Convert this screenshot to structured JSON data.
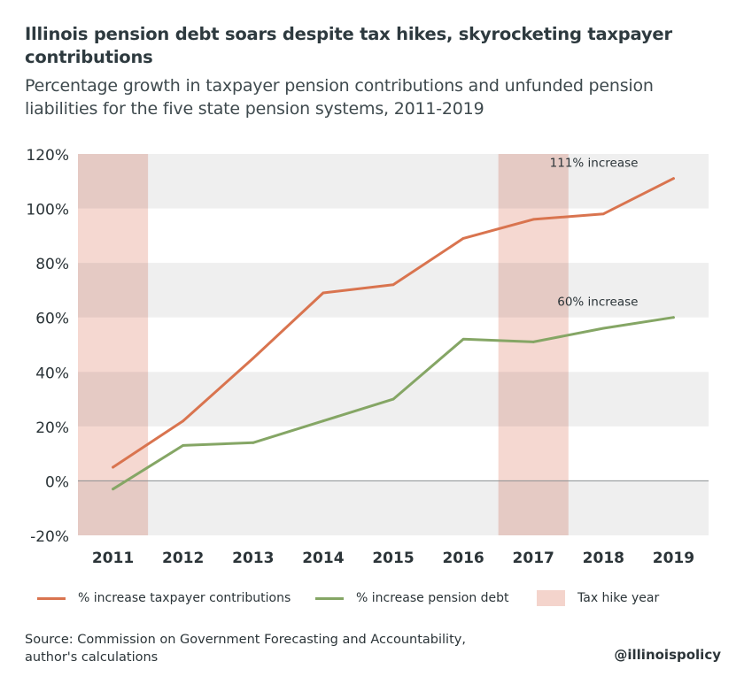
{
  "header": {
    "title": "Illinois pension debt soars despite tax hikes, skyrocketing taxpayer contributions",
    "subtitle": "Percentage growth in taxpayer pension contributions and unfunded pension liabilities for the five state pension systems, 2011-2019"
  },
  "chart_data": {
    "type": "line",
    "title": "Illinois pension debt soars despite tax hikes, skyrocketing taxpayer contributions",
    "subtitle": "Percentage growth in taxpayer pension contributions and unfunded pension liabilities for the five state pension systems, 2011-2019",
    "categories": [
      "2011",
      "2012",
      "2013",
      "2014",
      "2015",
      "2016",
      "2017",
      "2018",
      "2019"
    ],
    "y_ticks": [
      "-20%",
      "0%",
      "20%",
      "40%",
      "60%",
      "80%",
      "100%",
      "120%"
    ],
    "y_tick_values": [
      -20,
      0,
      20,
      40,
      60,
      80,
      100,
      120
    ],
    "ylim": [
      -20,
      120
    ],
    "grid": "alternating horizontal bands",
    "series": [
      {
        "name": "% increase taxpayer contributions",
        "color": "#d9744f",
        "values": [
          5,
          22,
          45,
          69,
          72,
          89,
          96,
          98,
          111
        ]
      },
      {
        "name": "% increase pension debt",
        "color": "#85a665",
        "values": [
          -3,
          13,
          14,
          22,
          30,
          52,
          51,
          56,
          60
        ]
      }
    ],
    "highlighted_years": [
      "2011",
      "2017"
    ],
    "highlight_label": "Tax hike year",
    "highlight_color": "#f4d4cc",
    "annotations": [
      {
        "text": "111% increase",
        "series": 0,
        "x": "2019",
        "y": 111
      },
      {
        "text": "60% increase",
        "series": 1,
        "x": "2019",
        "y": 60
      }
    ],
    "legend_position": "bottom"
  },
  "legend": {
    "contributions": "% increase taxpayer contributions",
    "debt": "% increase pension debt",
    "tax_hike": "Tax hike year"
  },
  "footer": {
    "source": "Source: Commission on Government Forecasting and Accountability, author's calculations",
    "brand": "@illinoispolicy"
  }
}
